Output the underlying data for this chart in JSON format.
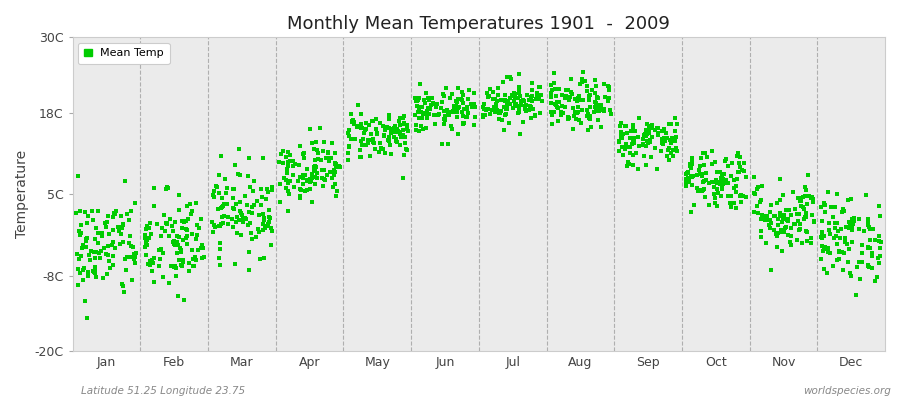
{
  "title": "Monthly Mean Temperatures 1901  -  2009",
  "ylabel": "Temperature",
  "xlabel_months": [
    "Jan",
    "Feb",
    "Mar",
    "Apr",
    "May",
    "Jun",
    "Jul",
    "Aug",
    "Sep",
    "Oct",
    "Nov",
    "Dec"
  ],
  "yticks": [
    -20,
    -8,
    5,
    18,
    30
  ],
  "ytick_labels": [
    "-20C",
    "-8C",
    "5C",
    "18C",
    "30C"
  ],
  "ylim": [
    -20,
    30
  ],
  "dot_color": "#00cc00",
  "dot_size": 6,
  "fig_bg_color": "#ffffff",
  "plot_bg_color": "#ebebeb",
  "legend_label": "Mean Temp",
  "subtitle_left": "Latitude 51.25 Longitude 23.75",
  "subtitle_right": "worldspecies.org",
  "years": 109,
  "monthly_means": [
    -3.5,
    -3.0,
    2.5,
    9.0,
    14.5,
    18.2,
    19.8,
    19.2,
    13.5,
    7.5,
    1.5,
    -2.0
  ],
  "monthly_stds": [
    4.2,
    4.2,
    3.5,
    2.5,
    2.0,
    1.8,
    1.8,
    2.0,
    2.0,
    2.5,
    3.0,
    3.5
  ],
  "seed": 42,
  "vline_color": "#888888",
  "axis_color": "#444444",
  "text_color": "#888888",
  "title_color": "#222222"
}
